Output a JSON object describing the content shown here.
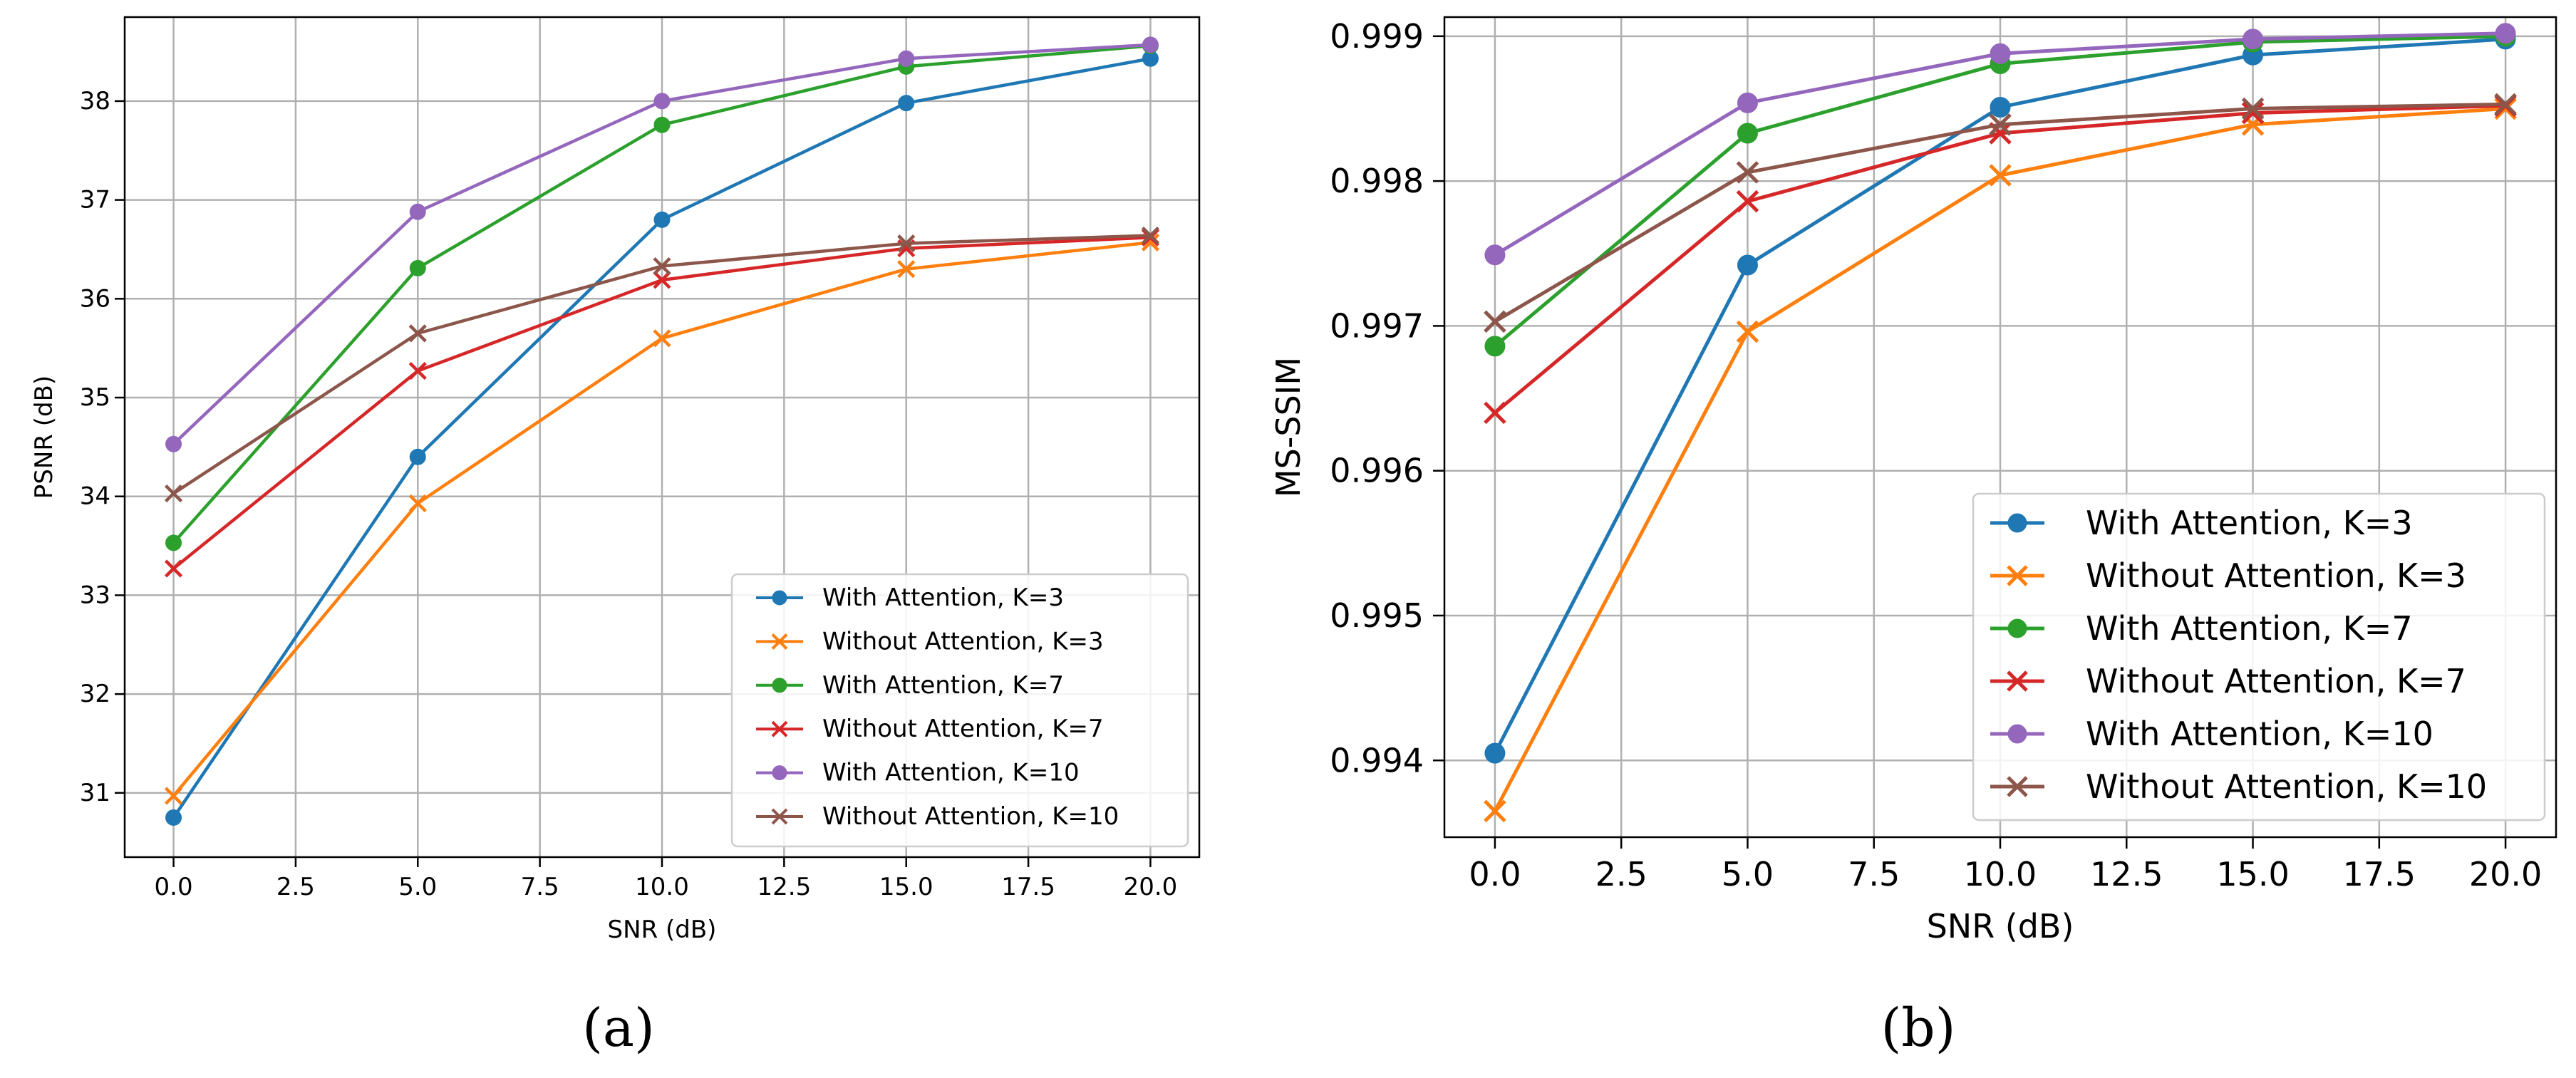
{
  "chart_data": [
    {
      "type": "line",
      "caption": "(a)",
      "xlabel": "SNR (dB)",
      "ylabel": "PSNR (dB)",
      "x": [
        0,
        5,
        10,
        15,
        20
      ],
      "xlim": [
        -1,
        21
      ],
      "ylim": [
        30.35,
        38.85
      ],
      "xticks": [
        0.0,
        2.5,
        5.0,
        7.5,
        10.0,
        12.5,
        15.0,
        17.5,
        20.0
      ],
      "xtick_labels": [
        "0.0",
        "2.5",
        "5.0",
        "7.5",
        "10.0",
        "12.5",
        "15.0",
        "17.5",
        "20.0"
      ],
      "yticks": [
        31,
        32,
        33,
        34,
        35,
        36,
        37,
        38
      ],
      "ytick_labels": [
        "31",
        "32",
        "33",
        "34",
        "35",
        "36",
        "37",
        "38"
      ],
      "grid": true,
      "legend_position": "bottom-right",
      "series": [
        {
          "name": "With Attention, K=3",
          "color": "#1f77b4",
          "marker": "circle",
          "values": [
            30.75,
            34.4,
            36.8,
            37.98,
            38.43
          ]
        },
        {
          "name": "Without Attention, K=3",
          "color": "#ff7f0e",
          "marker": "x",
          "values": [
            30.97,
            33.93,
            35.6,
            36.3,
            36.57
          ]
        },
        {
          "name": "With Attention, K=7",
          "color": "#2ca02c",
          "marker": "circle",
          "values": [
            33.53,
            36.31,
            37.76,
            38.35,
            38.56
          ]
        },
        {
          "name": "Without Attention, K=7",
          "color": "#d62728",
          "marker": "x",
          "values": [
            33.27,
            35.27,
            36.19,
            36.51,
            36.62
          ]
        },
        {
          "name": "With Attention, K=10",
          "color": "#9467bd",
          "marker": "circle",
          "values": [
            34.53,
            36.88,
            38.0,
            38.43,
            38.57
          ]
        },
        {
          "name": "Without Attention, K=10",
          "color": "#8c564b",
          "marker": "x",
          "values": [
            34.03,
            35.65,
            36.33,
            36.56,
            36.64
          ]
        }
      ]
    },
    {
      "type": "line",
      "caption": "(b)",
      "xlabel": "SNR (dB)",
      "ylabel": "MS-SSIM",
      "x": [
        0,
        5,
        10,
        15,
        20
      ],
      "xlim": [
        -1,
        21
      ],
      "ylim": [
        0.99347,
        0.999132
      ],
      "xticks": [
        0.0,
        2.5,
        5.0,
        7.5,
        10.0,
        12.5,
        15.0,
        17.5,
        20.0
      ],
      "xtick_labels": [
        "0.0",
        "2.5",
        "5.0",
        "7.5",
        "10.0",
        "12.5",
        "15.0",
        "17.5",
        "20.0"
      ],
      "yticks": [
        0.994,
        0.995,
        0.996,
        0.997,
        0.998,
        0.999
      ],
      "ytick_labels": [
        "0.994",
        "0.995",
        "0.996",
        "0.997",
        "0.998",
        "0.999"
      ],
      "grid": true,
      "legend_position": "bottom-right",
      "series": [
        {
          "name": "With Attention, K=3",
          "color": "#1f77b4",
          "marker": "circle",
          "values": [
            0.99405,
            0.99742,
            0.99851,
            0.99887,
            0.99898
          ]
        },
        {
          "name": "Without Attention, K=3",
          "color": "#ff7f0e",
          "marker": "x",
          "values": [
            0.99365,
            0.99696,
            0.99804,
            0.99839,
            0.9985
          ]
        },
        {
          "name": "With Attention, K=7",
          "color": "#2ca02c",
          "marker": "circle",
          "values": [
            0.99686,
            0.99833,
            0.99881,
            0.99896,
            0.999
          ]
        },
        {
          "name": "Without Attention, K=7",
          "color": "#d62728",
          "marker": "x",
          "values": [
            0.9964,
            0.99786,
            0.99833,
            0.99847,
            0.99852
          ]
        },
        {
          "name": "With Attention, K=10",
          "color": "#9467bd",
          "marker": "circle",
          "values": [
            0.99749,
            0.99854,
            0.99888,
            0.99898,
            0.99902
          ]
        },
        {
          "name": "Without Attention, K=10",
          "color": "#8c564b",
          "marker": "x",
          "values": [
            0.99703,
            0.99806,
            0.99839,
            0.9985,
            0.99853
          ]
        }
      ]
    }
  ]
}
